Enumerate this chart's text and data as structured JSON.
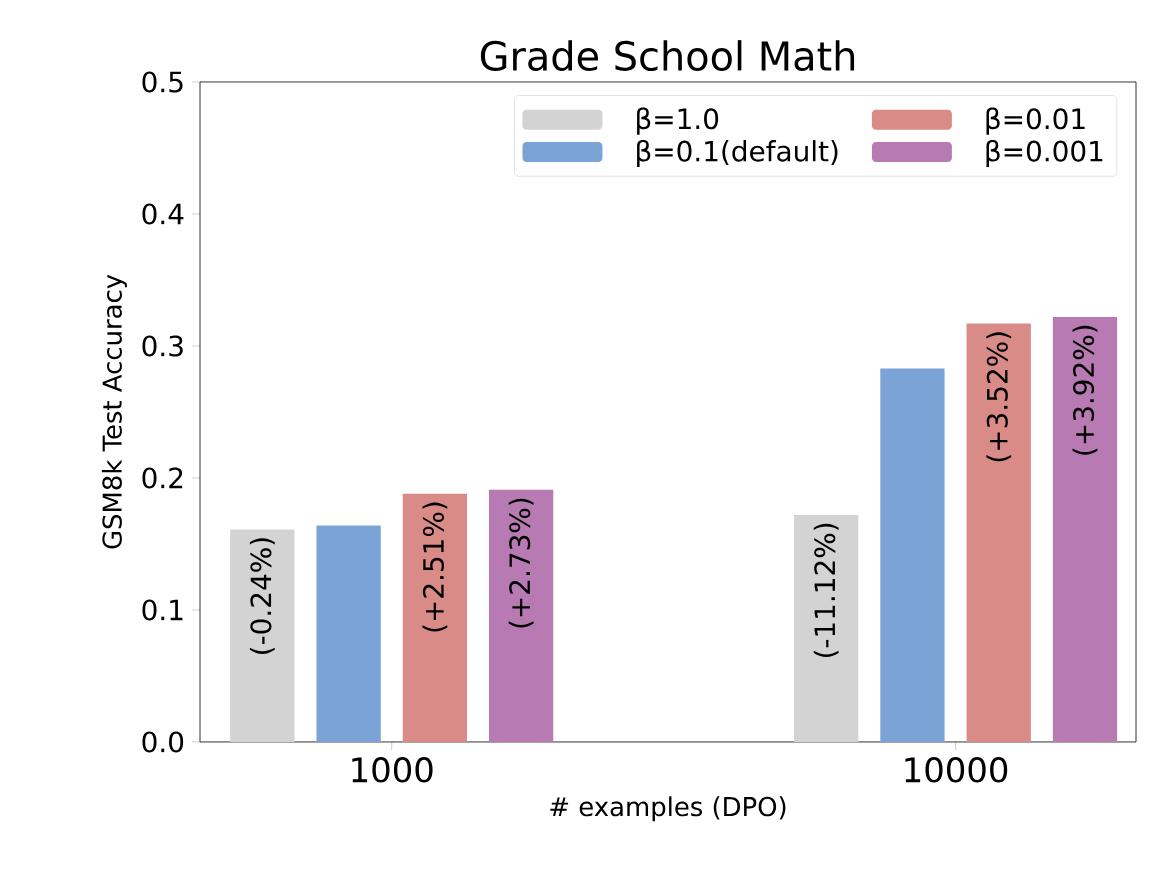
{
  "chart_data": {
    "type": "bar",
    "title": "Grade School Math",
    "xlabel": "# examples (DPO)",
    "ylabel": "GSM8k Test Accuracy",
    "categories": [
      "1000",
      "10000"
    ],
    "series": [
      {
        "name": "β=1.0",
        "color": "#d3d3d3",
        "values": [
          0.161,
          0.172
        ]
      },
      {
        "name": "β=0.1(default)",
        "color": "#7ba3d6",
        "values": [
          0.164,
          0.283
        ]
      },
      {
        "name": "β=0.01",
        "color": "#d98b88",
        "values": [
          0.188,
          0.317
        ]
      },
      {
        "name": "β=0.001",
        "color": "#b87ab3",
        "values": [
          0.191,
          0.322
        ]
      }
    ],
    "annotations": [
      "(-0.24%)",
      "(-11.12%)",
      "(+2.51%)",
      "(+3.52%)",
      "(+2.73%)",
      "(+3.92%)"
    ],
    "ylim": [
      0,
      0.5
    ],
    "yticks": [
      {
        "value": 0,
        "label": "0.0"
      },
      0.1,
      0.2,
      0.3,
      0.4,
      0.5
    ],
    "legend": "top right",
    "grid": false
  }
}
